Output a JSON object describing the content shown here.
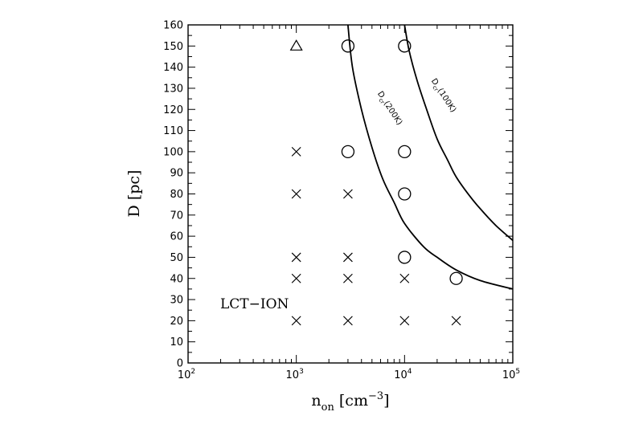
{
  "chart_data": {
    "type": "scatter",
    "xlabel": {
      "base": "n",
      "sub": "on",
      "unit_open": " [cm",
      "unit_sup": "−3",
      "unit_close": "]"
    },
    "ylabel": "D [pc]",
    "xscale": "log",
    "xlim": [
      100,
      100000
    ],
    "ylim": [
      0,
      160
    ],
    "x_ticks": [
      {
        "value": 100,
        "base": "10",
        "exp": "2"
      },
      {
        "value": 1000,
        "base": "10",
        "exp": "3"
      },
      {
        "value": 10000,
        "base": "10",
        "exp": "4"
      },
      {
        "value": 100000,
        "base": "10",
        "exp": "5"
      }
    ],
    "y_ticks": [
      0,
      10,
      20,
      30,
      40,
      50,
      60,
      70,
      80,
      90,
      100,
      110,
      120,
      130,
      140,
      150,
      160
    ],
    "annotation": "LCT−ION",
    "series": [
      {
        "marker": "triangle",
        "points": [
          [
            1000,
            150
          ]
        ]
      },
      {
        "marker": "circle",
        "points": [
          [
            3000,
            150
          ],
          [
            10000,
            150
          ],
          [
            3000,
            100
          ],
          [
            10000,
            100
          ],
          [
            10000,
            80
          ],
          [
            10000,
            50
          ],
          [
            30000,
            40
          ]
        ]
      },
      {
        "marker": "cross",
        "points": [
          [
            1000,
            100
          ],
          [
            1000,
            80
          ],
          [
            3000,
            80
          ],
          [
            1000,
            50
          ],
          [
            3000,
            50
          ],
          [
            1000,
            40
          ],
          [
            3000,
            40
          ],
          [
            10000,
            40
          ],
          [
            1000,
            20
          ],
          [
            3000,
            20
          ],
          [
            10000,
            20
          ],
          [
            30000,
            20
          ]
        ]
      }
    ],
    "curves": [
      {
        "label_base": "D",
        "label_sub": "cr",
        "label_rest": "(200K)",
        "points": [
          [
            3000,
            160
          ],
          [
            3300,
            140
          ],
          [
            4000,
            120
          ],
          [
            5000,
            102
          ],
          [
            6300,
            87
          ],
          [
            8000,
            76
          ],
          [
            10000,
            66
          ],
          [
            15000,
            55
          ],
          [
            20000,
            50
          ],
          [
            30000,
            44
          ],
          [
            50000,
            39
          ],
          [
            100000,
            35
          ]
        ]
      },
      {
        "label_base": "D",
        "label_sub": "cr",
        "label_rest": "(100K)",
        "points": [
          [
            10000,
            160
          ],
          [
            11000,
            148
          ],
          [
            13000,
            134
          ],
          [
            16000,
            120
          ],
          [
            20000,
            106
          ],
          [
            25000,
            96
          ],
          [
            30000,
            88
          ],
          [
            40000,
            79
          ],
          [
            50000,
            73
          ],
          [
            70000,
            65
          ],
          [
            100000,
            58
          ]
        ]
      }
    ]
  }
}
